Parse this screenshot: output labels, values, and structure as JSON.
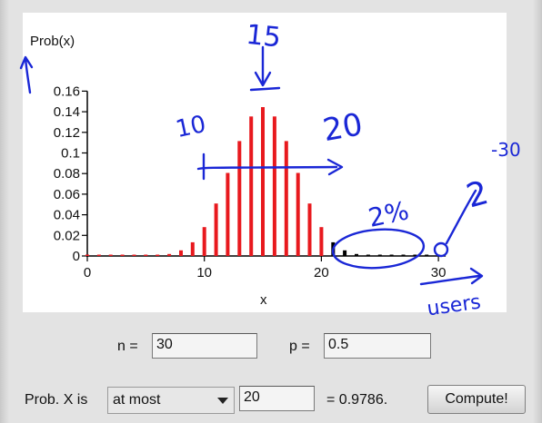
{
  "chart_data": {
    "type": "bar",
    "ylabel": "Prob(x)",
    "xlabel": "x",
    "x": [
      0,
      1,
      2,
      3,
      4,
      5,
      6,
      7,
      8,
      9,
      10,
      11,
      12,
      13,
      14,
      15,
      16,
      17,
      18,
      19,
      20,
      21,
      22,
      23,
      24,
      25,
      26,
      27,
      28,
      29,
      30
    ],
    "values": [
      0.0,
      0.0,
      0.0,
      0.0,
      0.0,
      0.0001,
      0.0006,
      0.0019,
      0.0055,
      0.0133,
      0.028,
      0.0509,
      0.0806,
      0.1115,
      0.1354,
      0.1445,
      0.1354,
      0.1115,
      0.0806,
      0.0509,
      0.028,
      0.0133,
      0.0055,
      0.0019,
      0.0006,
      0.0001,
      0.0,
      0.0,
      0.0,
      0.0,
      0.0
    ],
    "highlight_from": 21,
    "colors": {
      "included": "#e8191e",
      "excluded": "#000000"
    },
    "yticks": [
      "0",
      "0.02",
      "0.04",
      "0.06",
      "0.08",
      "0.1",
      "0.12",
      "0.14",
      "0.16"
    ],
    "ytick_values": [
      0,
      0.02,
      0.04,
      0.06,
      0.08,
      0.1,
      0.12,
      0.14,
      0.16
    ],
    "xticks": [
      "0",
      "10",
      "20",
      "30"
    ],
    "xtick_values": [
      0,
      10,
      20,
      30
    ],
    "xlim": [
      0,
      30
    ],
    "ylim": [
      0,
      0.16
    ]
  },
  "controls": {
    "n_label": "n =",
    "n_value": "30",
    "p_label": "p =",
    "p_value": "0.5",
    "prob_label": "Prob. X is",
    "mode_selected": "at most",
    "x_value": "20",
    "result_text": "= 0.9786.",
    "compute_label": "Compute!"
  },
  "annotations": {
    "peak_label": "15",
    "left_label": "10",
    "right_label": "20",
    "percent_label": "2%",
    "power_label": "2",
    "power_exponent": "-30",
    "users_label": "users"
  }
}
